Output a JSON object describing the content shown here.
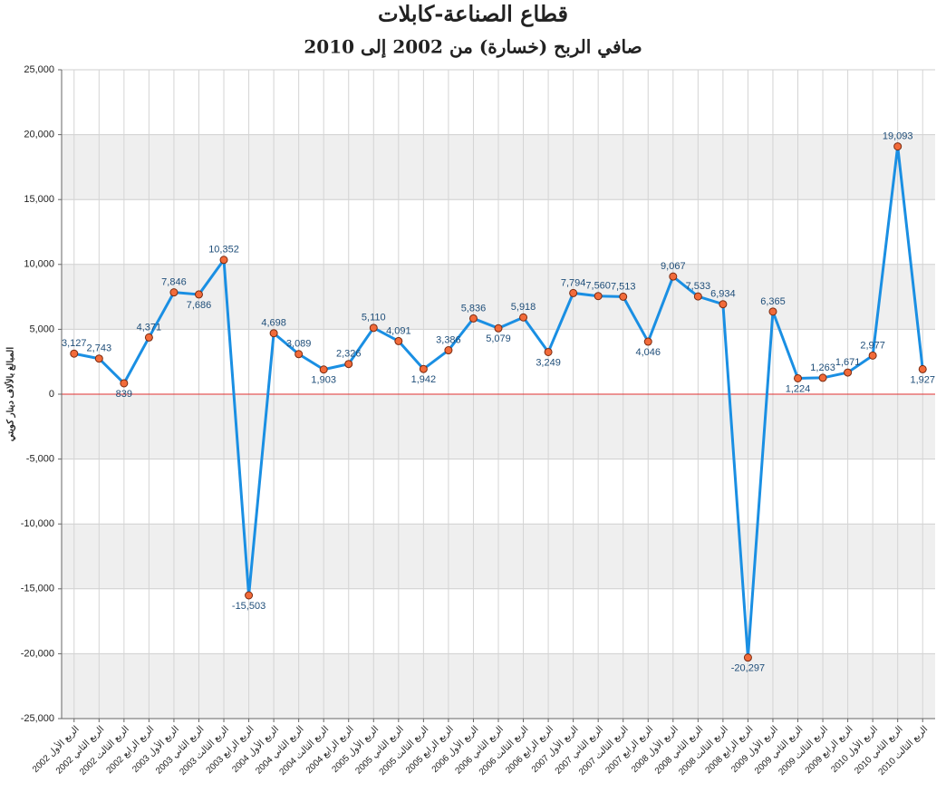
{
  "chart_data": {
    "type": "line",
    "title": "قطاع الصناعة-كابلات",
    "subtitle": "صافي الربح (خسارة) من 2002 إلى 2010",
    "y_label": "المبالغ بالألاف دينار كويتي",
    "categories": [
      "الربع الأول 2002",
      "الربع الثاني 2002",
      "الربع الثالث 2002",
      "الربع الرابع 2002",
      "الربع الأول 2003",
      "الربع الثاني 2003",
      "الربع الثالث 2003",
      "الربع الرابع 2003",
      "الربع الأول 2004",
      "الربع الثاني 2004",
      "الربع الثالث 2004",
      "الربع الرابع 2004",
      "الربع الأول 2005",
      "الربع الثاني 2005",
      "الربع الثالث 2005",
      "الربع الرابع 2005",
      "الربع الأول 2006",
      "الربع الثاني 2006",
      "الربع الثالث 2006",
      "الربع الرابع 2006",
      "الربع الأول 2007",
      "الربع الثاني 2007",
      "الربع الثالث 2007",
      "الربع الرابع 2007",
      "الربع الأول 2008",
      "الربع الثاني 2008",
      "الربع الثالث 2008",
      "الربع الرابع 2008",
      "الربع الأول 2009",
      "الربع الثاني 2009",
      "الربع الثالث 2009",
      "الربع الرابع 2009",
      "الربع الأول 2010",
      "الربع الثاني 2010",
      "الربع الثالث 2010"
    ],
    "values": [
      3127,
      2743,
      839,
      4371,
      7846,
      7686,
      10352,
      -15503,
      4698,
      3089,
      1903,
      2326,
      5110,
      4091,
      1942,
      3386,
      5836,
      5079,
      5918,
      3249,
      7794,
      7560,
      7513,
      4046,
      9067,
      7533,
      6934,
      -20297,
      6365,
      1224,
      1263,
      1671,
      2977,
      19093,
      1927
    ],
    "value_labels": [
      "3,127",
      "2,743",
      "839",
      "4,371",
      "7,846",
      "7,686",
      "10,352",
      "-15,503",
      "4,698",
      "3,089",
      "1,903",
      "2,326",
      "5,110",
      "4,091",
      "1,942",
      "3,386",
      "5,836",
      "5,079",
      "5,918",
      "3,249",
      "7,794",
      "7,560",
      "7,513",
      "4,046",
      "9,067",
      "7,533",
      "6,934",
      "-20,297",
      "6,365",
      "1,224",
      "1,263",
      "1,671",
      "2,977",
      "19,093",
      "1,927"
    ],
    "color": "#1a8fe3",
    "marker_color": "#f26b3a",
    "zero_line_color": "#e03030",
    "ylim": [
      -25000,
      25000
    ],
    "yticks": [
      {
        "value": -25000,
        "label": "-25,000"
      },
      {
        "value": -20000,
        "label": "-20,000"
      },
      {
        "value": -15000,
        "label": "-15,000"
      },
      {
        "value": -10000,
        "label": "-10,000"
      },
      {
        "value": -5000,
        "label": "-5,000"
      },
      0,
      {
        "value": 5000,
        "label": "5,000"
      },
      {
        "value": 10000,
        "label": "10,000"
      },
      {
        "value": 15000,
        "label": "15,000"
      },
      {
        "value": 20000,
        "label": "20,000"
      },
      {
        "value": 25000,
        "label": "25,000"
      }
    ],
    "grid": true
  }
}
